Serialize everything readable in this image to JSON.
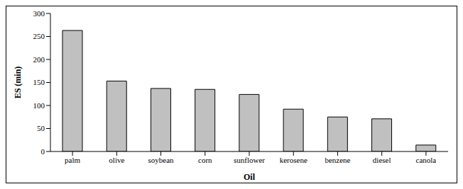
{
  "chart_data": {
    "type": "bar",
    "x_label": "Oil",
    "y_label": "ES (min)",
    "categories": [
      "palm",
      "olive",
      "soybean",
      "corn",
      "sunflower",
      "kerosene",
      "benzene",
      "diesel",
      "canola"
    ],
    "values": [
      263,
      153,
      137,
      135,
      124,
      92,
      75,
      71,
      14
    ],
    "color": "#c0c0c0",
    "ylim": [
      0,
      300
    ],
    "yticks": [
      0,
      50,
      100,
      150,
      200,
      250,
      300
    ],
    "grid": false
  }
}
